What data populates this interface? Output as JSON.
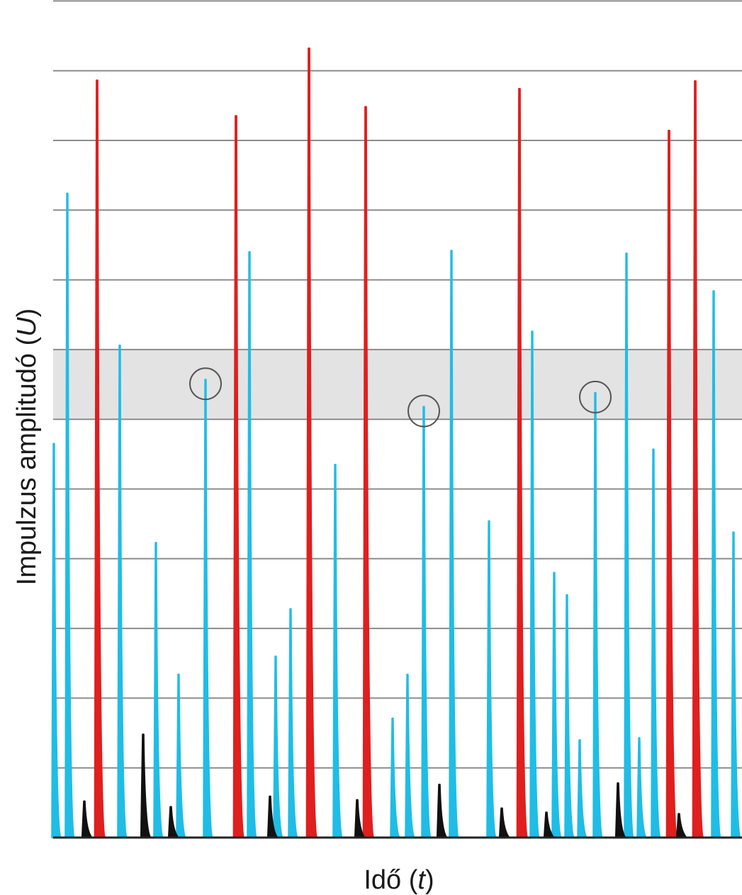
{
  "chart_data": {
    "type": "pulse-height",
    "xlabel": {
      "main": "Idő (",
      "var": "t",
      "close": ")"
    },
    "ylabel": {
      "main": "Impulzus amplitudó (",
      "var": "U",
      "close": ")"
    },
    "ylim": [
      0,
      12
    ],
    "yticks": [
      1,
      2,
      3,
      4,
      5,
      6,
      7,
      8,
      9,
      10,
      11,
      12
    ],
    "grid": "horizontal",
    "window": {
      "low": 6.0,
      "high": 7.0
    },
    "colors": {
      "red": "#e01f1f",
      "blue": "#1fbde6",
      "black": "#111111",
      "window": "#e3e3e3",
      "grid": "#8c8c8c",
      "circle": "#555555"
    },
    "pulses": {
      "red": [
        {
          "t": 137,
          "u": 10.86
        },
        {
          "t": 333,
          "u": 10.35
        },
        {
          "t": 436,
          "u": 11.32
        },
        {
          "t": 516,
          "u": 10.48
        },
        {
          "t": 733,
          "u": 10.74
        },
        {
          "t": 944,
          "u": 10.14
        },
        {
          "t": 981,
          "u": 10.85
        }
      ],
      "blue": [
        {
          "t": 76,
          "u": 5.65
        },
        {
          "t": 95,
          "u": 9.24
        },
        {
          "t": 169,
          "u": 7.06
        },
        {
          "t": 220,
          "u": 4.23
        },
        {
          "t": 252,
          "u": 2.34
        },
        {
          "t": 290,
          "u": 6.57
        },
        {
          "t": 352,
          "u": 8.4
        },
        {
          "t": 389,
          "u": 2.6
        },
        {
          "t": 410,
          "u": 3.28
        },
        {
          "t": 473,
          "u": 5.35
        },
        {
          "t": 554,
          "u": 1.71
        },
        {
          "t": 575,
          "u": 2.34
        },
        {
          "t": 598,
          "u": 6.18
        },
        {
          "t": 637,
          "u": 8.42
        },
        {
          "t": 690,
          "u": 4.54
        },
        {
          "t": 751,
          "u": 7.26
        },
        {
          "t": 782,
          "u": 3.8
        },
        {
          "t": 800,
          "u": 3.48
        },
        {
          "t": 818,
          "u": 1.4
        },
        {
          "t": 840,
          "u": 6.38
        },
        {
          "t": 884,
          "u": 8.38
        },
        {
          "t": 902,
          "u": 1.43
        },
        {
          "t": 922,
          "u": 5.57
        },
        {
          "t": 1007,
          "u": 7.84
        },
        {
          "t": 1035,
          "u": 4.38
        }
      ],
      "black": [
        {
          "t": 119,
          "u": 0.52
        },
        {
          "t": 202,
          "u": 1.48
        },
        {
          "t": 241,
          "u": 0.44
        },
        {
          "t": 381,
          "u": 0.59
        },
        {
          "t": 504,
          "u": 0.54
        },
        {
          "t": 620,
          "u": 0.76
        },
        {
          "t": 708,
          "u": 0.42
        },
        {
          "t": 771,
          "u": 0.36
        },
        {
          "t": 872,
          "u": 0.78
        },
        {
          "t": 958,
          "u": 0.34
        }
      ]
    },
    "circled": [
      {
        "t": 290,
        "u": 6.57
      },
      {
        "t": 598,
        "u": 6.18
      },
      {
        "t": 840,
        "u": 6.38
      }
    ]
  }
}
